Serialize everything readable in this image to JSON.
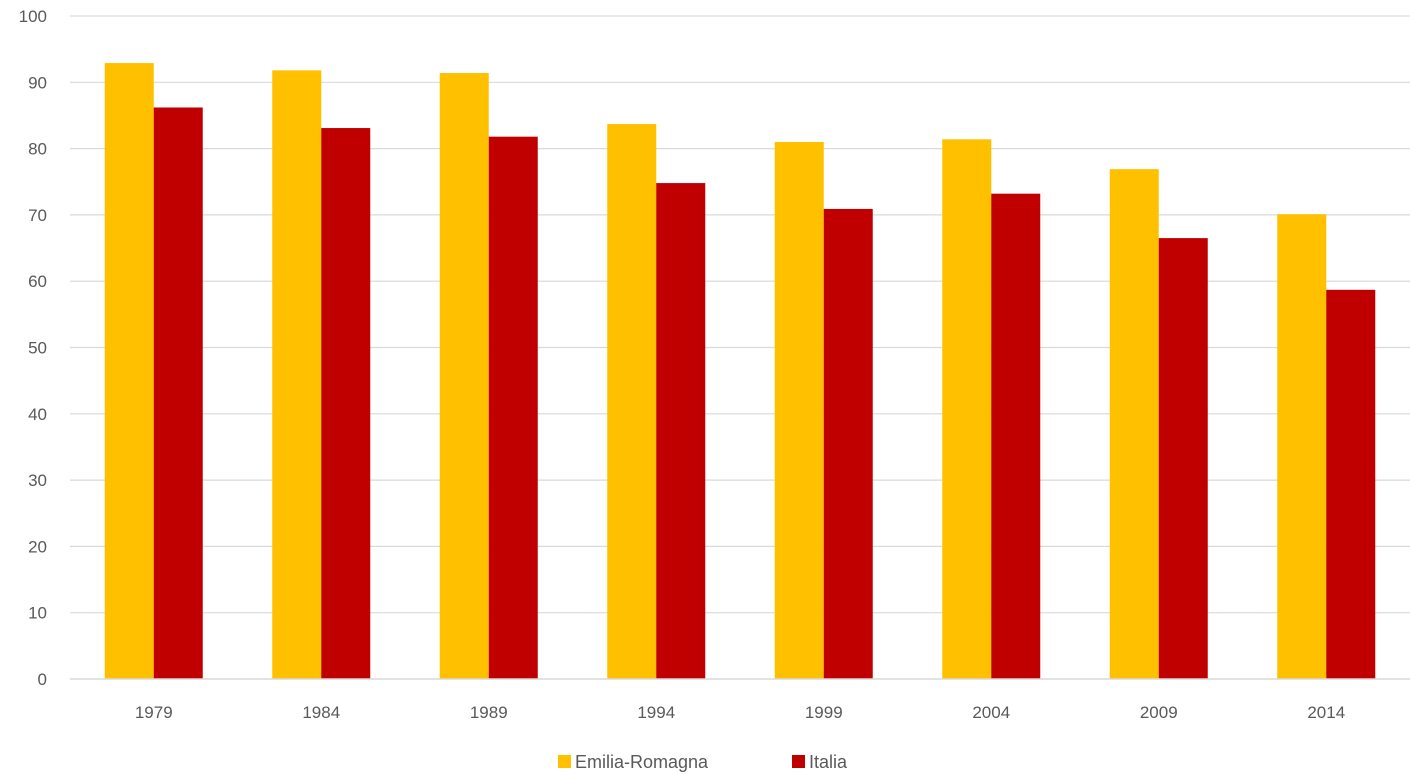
{
  "chart_data": {
    "type": "bar",
    "categories": [
      "1979",
      "1984",
      "1989",
      "1994",
      "1999",
      "2004",
      "2009",
      "2014"
    ],
    "series": [
      {
        "name": "Emilia-Romagna",
        "color": "#FFC000",
        "values": [
          92.9,
          91.8,
          91.4,
          83.7,
          81.0,
          81.4,
          76.9,
          70.1
        ]
      },
      {
        "name": "Italia",
        "color": "#C00000",
        "values": [
          86.2,
          83.1,
          81.8,
          74.8,
          70.9,
          73.2,
          66.5,
          58.7
        ]
      }
    ],
    "title": "",
    "xlabel": "",
    "ylabel": "",
    "ylim": [
      0,
      100
    ],
    "yticks": [
      0,
      10,
      20,
      30,
      40,
      50,
      60,
      70,
      80,
      90,
      100
    ],
    "grid": true,
    "legend_position": "bottom"
  }
}
